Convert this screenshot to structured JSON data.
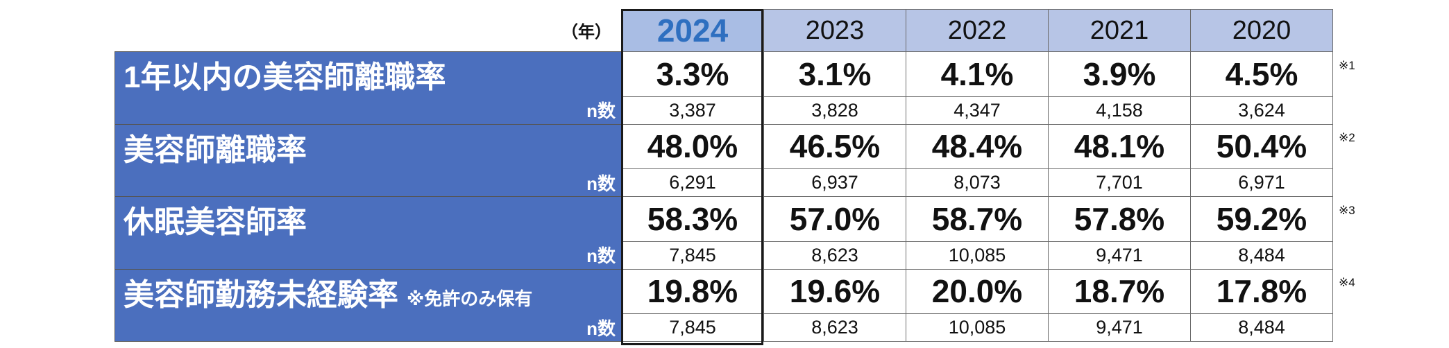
{
  "header": {
    "unit": "（年）",
    "years": [
      "2024",
      "2023",
      "2022",
      "2021",
      "2020"
    ]
  },
  "rows": [
    {
      "label": "1年以内の美容師離職率",
      "sub": "",
      "n_label": "n数",
      "values": [
        "3.3%",
        "3.1%",
        "4.1%",
        "3.9%",
        "4.5%"
      ],
      "n": [
        "3,387",
        "3,828",
        "4,347",
        "4,158",
        "3,624"
      ],
      "note": "※1"
    },
    {
      "label": "美容師離職率",
      "sub": "",
      "n_label": "n数",
      "values": [
        "48.0%",
        "46.5%",
        "48.4%",
        "48.1%",
        "50.4%"
      ],
      "n": [
        "6,291",
        "6,937",
        "8,073",
        "7,701",
        "6,971"
      ],
      "note": "※2"
    },
    {
      "label": "休眠美容師率",
      "sub": "",
      "n_label": "n数",
      "values": [
        "58.3%",
        "57.0%",
        "58.7%",
        "57.8%",
        "59.2%"
      ],
      "n": [
        "7,845",
        "8,623",
        "10,085",
        "9,471",
        "8,484"
      ],
      "note": "※3"
    },
    {
      "label": "美容師勤務未経験率",
      "sub": "※免許のみ保有",
      "n_label": "n数",
      "values": [
        "19.8%",
        "19.6%",
        "20.0%",
        "18.7%",
        "17.8%"
      ],
      "n": [
        "7,845",
        "8,623",
        "10,085",
        "9,471",
        "8,484"
      ],
      "note": "※4"
    }
  ]
}
